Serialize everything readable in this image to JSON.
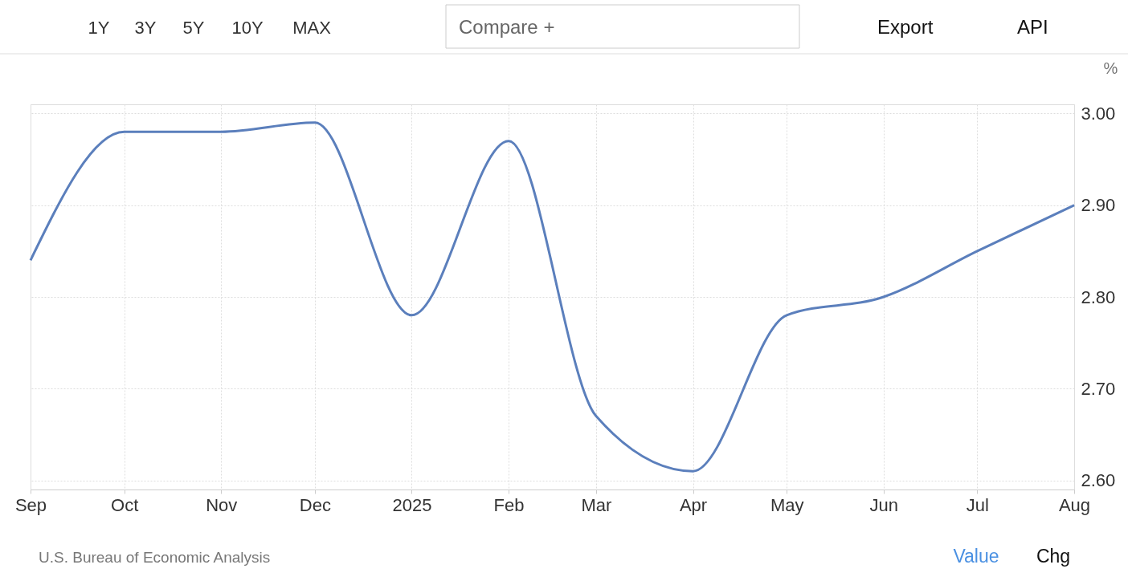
{
  "chart_data": {
    "type": "line",
    "x": [
      "2024-09",
      "2024-10",
      "2024-11",
      "2024-12",
      "2025-01",
      "2025-02",
      "2025-03",
      "2025-04",
      "2025-05",
      "2025-06",
      "2025-07",
      "2025-08"
    ],
    "series": [
      {
        "color": "#5b7fbc",
        "values": [
          2.84,
          2.98,
          2.98,
          2.99,
          2.78,
          2.97,
          2.67,
          2.61,
          2.78,
          2.8,
          2.85,
          2.9
        ]
      }
    ],
    "ylabel": "%",
    "xlim": [
      "2024-09",
      "2025-08"
    ],
    "xticks": [
      {
        "value": "2024-09",
        "label": "Sep"
      },
      {
        "value": "2024-10",
        "label": "Oct"
      },
      {
        "value": "2024-11",
        "label": "Nov"
      },
      {
        "value": "2024-12",
        "label": "Dec"
      },
      {
        "value": "2025-01",
        "label": "2025"
      },
      {
        "value": "2025-02",
        "label": "Feb"
      },
      {
        "value": "2025-03",
        "label": "Mar"
      },
      {
        "value": "2025-04",
        "label": "Apr"
      },
      {
        "value": "2025-05",
        "label": "May"
      },
      {
        "value": "2025-06",
        "label": "Jun"
      },
      {
        "value": "2025-07",
        "label": "Jul"
      },
      {
        "value": "2025-08",
        "label": "Aug"
      }
    ],
    "ylim": [
      2.59,
      3.01
    ],
    "yticks": [
      {
        "value": 2.6,
        "label": "2.60"
      },
      {
        "value": 2.7,
        "label": "2.70"
      },
      {
        "value": 2.8,
        "label": "2.80"
      },
      {
        "value": 2.9,
        "label": "2.90"
      },
      {
        "value": 3.0,
        "label": "3.00"
      }
    ],
    "grid": true,
    "annotations": [
      "1Y",
      "3Y",
      "5Y",
      "10Y",
      "MAX",
      "Compare +",
      "Export",
      "API",
      "U.S. Bureau of Economic Analysis",
      "Value",
      "Chg"
    ]
  }
}
